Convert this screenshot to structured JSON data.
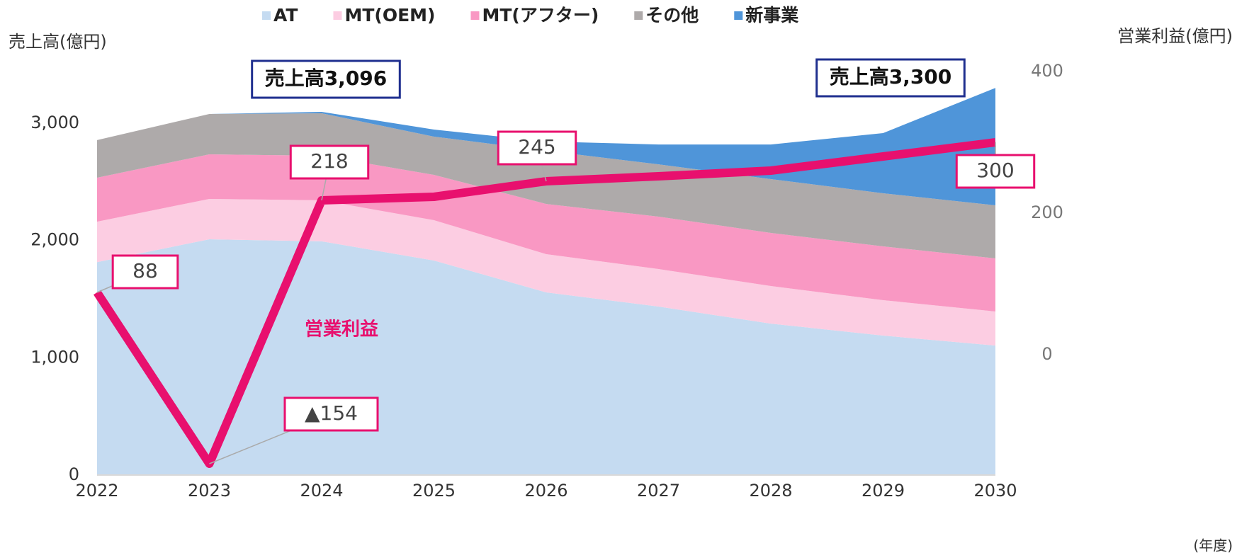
{
  "chart_data": {
    "type": "stacked_area_line",
    "y_label": "売上高(億円)",
    "y2_label": "営業利益(億円)",
    "x_label": "(年度)",
    "categories": [
      "2022",
      "2023",
      "2024",
      "2025",
      "2026",
      "2027",
      "2028",
      "2029",
      "2030"
    ],
    "series": [
      {
        "name": "AT",
        "color": "#c5dbf1",
        "values": [
          1815,
          2010,
          1992,
          1829,
          1557,
          1436,
          1291,
          1189,
          1104
        ]
      },
      {
        "name": "MT(OEM)",
        "color": "#fccde2",
        "values": [
          345,
          344,
          350,
          344,
          326,
          320,
          320,
          302,
          290
        ]
      },
      {
        "name": "MT(アフター)",
        "color": "#f998c3",
        "values": [
          375,
          380,
          380,
          386,
          428,
          447,
          453,
          458,
          453
        ]
      },
      {
        "name": "その他",
        "color": "#aeaaaa",
        "values": [
          320,
          344,
          362,
          326,
          453,
          446,
          459,
          453,
          452
        ]
      },
      {
        "name": "新事業",
        "color": "#4f95d9",
        "values": [
          0,
          0,
          12,
          60,
          79,
          169,
          295,
          513,
          1001
        ]
      },
      {
        "name": "営業利益",
        "color": "#e8106e",
        "axis": "y2",
        "type": "line",
        "values": [
          88,
          -154,
          218,
          223,
          245,
          252,
          260,
          280,
          300
        ],
        "value_labels": [
          "88",
          "▲154",
          "218",
          null,
          "245",
          null,
          null,
          null,
          "300"
        ]
      }
    ],
    "annotations": [
      "売上高3,096",
      "売上高3,300"
    ],
    "ylim": [
      0,
      3440
    ],
    "yticks": [
      0,
      {
        "value": 1000,
        "label": "1,000"
      },
      {
        "value": 2000,
        "label": "2,000"
      },
      {
        "value": 3000,
        "label": "3,000"
      }
    ],
    "y2lim": [
      -170,
      400
    ],
    "y2ticks": [
      0,
      200,
      400
    ],
    "legend": "top"
  }
}
